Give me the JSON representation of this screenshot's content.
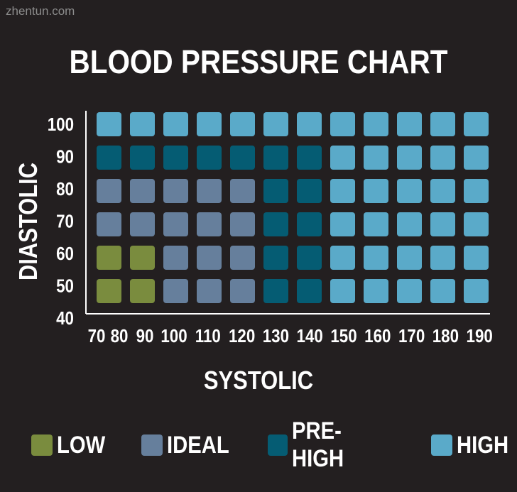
{
  "watermark": "zhentun.com",
  "chart_data": {
    "type": "heatmap",
    "title": "BLOOD PRESSURE CHART",
    "xlabel": "SYSTOLIC",
    "ylabel": "DIASTOLIC",
    "x_ticks": [
      "70",
      "80",
      "90",
      "100",
      "110",
      "120",
      "130",
      "140",
      "150",
      "160",
      "170",
      "180",
      "190"
    ],
    "y_ticks": [
      "100",
      "90",
      "80",
      "70",
      "60",
      "50",
      "40"
    ],
    "categories": [
      "LOW",
      "IDEAL",
      "PRE-HIGH",
      "HIGH"
    ],
    "colors": {
      "LOW": "#7a8c3e",
      "IDEAL": "#667f9c",
      "PRE-HIGH": "#055c73",
      "HIGH": "#5aaac9"
    },
    "rows_top_to_bottom": [
      [
        "HIGH",
        "HIGH",
        "HIGH",
        "HIGH",
        "HIGH",
        "HIGH",
        "HIGH",
        "HIGH",
        "HIGH",
        "HIGH",
        "HIGH",
        "HIGH"
      ],
      [
        "PRE-HIGH",
        "PRE-HIGH",
        "PRE-HIGH",
        "PRE-HIGH",
        "PRE-HIGH",
        "PRE-HIGH",
        "PRE-HIGH",
        "HIGH",
        "HIGH",
        "HIGH",
        "HIGH",
        "HIGH"
      ],
      [
        "IDEAL",
        "IDEAL",
        "IDEAL",
        "IDEAL",
        "IDEAL",
        "PRE-HIGH",
        "PRE-HIGH",
        "HIGH",
        "HIGH",
        "HIGH",
        "HIGH",
        "HIGH"
      ],
      [
        "IDEAL",
        "IDEAL",
        "IDEAL",
        "IDEAL",
        "IDEAL",
        "PRE-HIGH",
        "PRE-HIGH",
        "HIGH",
        "HIGH",
        "HIGH",
        "HIGH",
        "HIGH"
      ],
      [
        "LOW",
        "LOW",
        "IDEAL",
        "IDEAL",
        "IDEAL",
        "PRE-HIGH",
        "PRE-HIGH",
        "HIGH",
        "HIGH",
        "HIGH",
        "HIGH",
        "HIGH"
      ],
      [
        "LOW",
        "LOW",
        "IDEAL",
        "IDEAL",
        "IDEAL",
        "PRE-HIGH",
        "PRE-HIGH",
        "HIGH",
        "HIGH",
        "HIGH",
        "HIGH",
        "HIGH"
      ]
    ],
    "legend_position": "bottom"
  }
}
